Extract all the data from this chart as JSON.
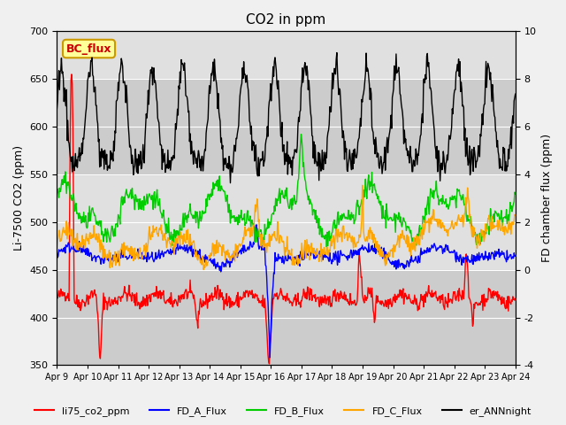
{
  "title": "CO2 in ppm",
  "ylabel_left": "Li-7500 CO2 (ppm)",
  "ylabel_right": "FD chamber flux (ppm)",
  "ylim_left": [
    350,
    700
  ],
  "ylim_right": [
    -4,
    10
  ],
  "x_tick_labels": [
    "Apr 9",
    "Apr 10",
    "Apr 11",
    "Apr 12",
    "Apr 13",
    "Apr 14",
    "Apr 15",
    "Apr 16",
    "Apr 17",
    "Apr 18",
    "Apr 19",
    "Apr 20",
    "Apr 21",
    "Apr 22",
    "Apr 23",
    "Apr 24"
  ],
  "legend_labels": [
    "li75_co2_ppm",
    "FD_A_Flux",
    "FD_B_Flux",
    "FD_C_Flux",
    "er_ANNnight"
  ],
  "legend_colors": [
    "#ff0000",
    "#0000ff",
    "#00cc00",
    "#ffa500",
    "#000000"
  ],
  "bc_flux_box_color": "#ffff99",
  "bc_flux_text_color": "#cc0000",
  "bc_flux_border_color": "#cc9900"
}
